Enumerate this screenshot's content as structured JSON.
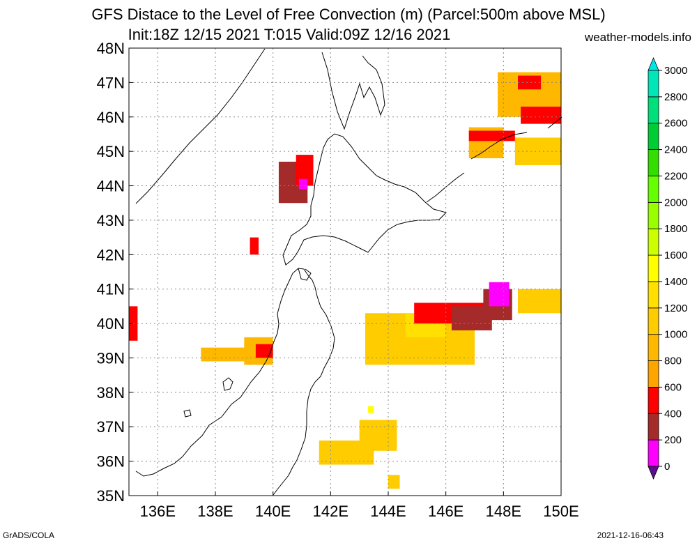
{
  "title": {
    "line1": "GFS Distace to the Level of Free Convection (m) (Parcel:500m above MSL)",
    "line2": "Init:18Z 12/15 2021 T:015 Valid:09Z 12/16 2021",
    "site": "weather-models.info"
  },
  "footer": {
    "left": "GrADS/COLA",
    "right": "2021-12-16-06:43"
  },
  "map": {
    "lon_range": [
      135,
      150
    ],
    "lat_range": [
      35,
      48
    ],
    "lon_ticks": [
      "136E",
      "138E",
      "140E",
      "142E",
      "144E",
      "146E",
      "148E",
      "150E"
    ],
    "lon_tick_values": [
      136,
      138,
      140,
      142,
      144,
      146,
      148,
      150
    ],
    "lat_ticks": [
      "35N",
      "36N",
      "37N",
      "38N",
      "39N",
      "40N",
      "41N",
      "42N",
      "43N",
      "44N",
      "45N",
      "46N",
      "47N",
      "48N"
    ],
    "lat_tick_values": [
      35,
      36,
      37,
      38,
      39,
      40,
      41,
      42,
      43,
      44,
      45,
      46,
      47,
      48
    ],
    "grid": true,
    "field_patches": [
      {
        "bounds": [
          [
            135.0,
            39.5
          ],
          [
            135.3,
            40.5
          ]
        ],
        "value": 500
      },
      {
        "bounds": [
          [
            137.5,
            38.9
          ],
          [
            139.2,
            39.3
          ]
        ],
        "value": 900
      },
      {
        "bounds": [
          [
            139.0,
            38.8
          ],
          [
            140.0,
            39.6
          ]
        ],
        "value": 900
      },
      {
        "bounds": [
          [
            139.4,
            39.0
          ],
          [
            140.0,
            39.4
          ]
        ],
        "value": 500
      },
      {
        "bounds": [
          [
            139.2,
            42.0
          ],
          [
            139.5,
            42.5
          ]
        ],
        "value": 500
      },
      {
        "bounds": [
          [
            140.2,
            43.5
          ],
          [
            141.2,
            44.7
          ]
        ],
        "value": 300
      },
      {
        "bounds": [
          [
            140.8,
            44.0
          ],
          [
            141.4,
            44.9
          ]
        ],
        "value": 500
      },
      {
        "bounds": [
          [
            140.9,
            43.9
          ],
          [
            141.2,
            44.2
          ]
        ],
        "value": 100
      },
      {
        "bounds": [
          [
            143.0,
            36.3
          ],
          [
            144.3,
            37.2
          ]
        ],
        "value": 1000
      },
      {
        "bounds": [
          [
            141.6,
            35.9
          ],
          [
            143.5,
            36.6
          ]
        ],
        "value": 1000
      },
      {
        "bounds": [
          [
            144.0,
            35.2
          ],
          [
            144.4,
            35.6
          ]
        ],
        "value": 1000
      },
      {
        "bounds": [
          [
            143.2,
            38.8
          ],
          [
            147.0,
            40.3
          ]
        ],
        "value": 1100
      },
      {
        "bounds": [
          [
            144.6,
            39.6
          ],
          [
            146.0,
            40.3
          ]
        ],
        "value": 1200
      },
      {
        "bounds": [
          [
            144.9,
            40.0
          ],
          [
            147.5,
            40.6
          ]
        ],
        "value": 500
      },
      {
        "bounds": [
          [
            146.2,
            39.8
          ],
          [
            147.6,
            40.5
          ]
        ],
        "value": 300
      },
      {
        "bounds": [
          [
            147.3,
            40.1
          ],
          [
            148.3,
            41.0
          ]
        ],
        "value": 300
      },
      {
        "bounds": [
          [
            147.5,
            40.5
          ],
          [
            148.2,
            41.2
          ]
        ],
        "value": 100
      },
      {
        "bounds": [
          [
            148.5,
            40.3
          ],
          [
            150.0,
            41.0
          ]
        ],
        "value": 1000
      },
      {
        "bounds": [
          [
            146.8,
            44.8
          ],
          [
            148.0,
            45.7
          ]
        ],
        "value": 900
      },
      {
        "bounds": [
          [
            146.8,
            45.3
          ],
          [
            148.4,
            45.6
          ]
        ],
        "value": 500
      },
      {
        "bounds": [
          [
            147.8,
            46.0
          ],
          [
            150.0,
            47.3
          ]
        ],
        "value": 900
      },
      {
        "bounds": [
          [
            148.6,
            45.8
          ],
          [
            150.0,
            46.3
          ]
        ],
        "value": 500
      },
      {
        "bounds": [
          [
            148.5,
            46.8
          ],
          [
            149.3,
            47.2
          ]
        ],
        "value": 500
      },
      {
        "bounds": [
          [
            148.4,
            44.6
          ],
          [
            150.0,
            45.4
          ]
        ],
        "value": 1000
      },
      {
        "bounds": [
          [
            143.3,
            37.4
          ],
          [
            143.5,
            37.6
          ]
        ],
        "value": 1500
      }
    ]
  },
  "colorbar": {
    "labels": [
      "0",
      "200",
      "400",
      "600",
      "800",
      "1000",
      "1200",
      "1400",
      "1600",
      "1800",
      "2000",
      "2200",
      "2400",
      "2600",
      "2800",
      "3000"
    ],
    "values": [
      0,
      200,
      400,
      600,
      800,
      1000,
      1200,
      1400,
      1600,
      1800,
      2000,
      2200,
      2400,
      2600,
      2800,
      3000
    ],
    "colors": [
      "#5b0f8e",
      "#ff00ff",
      "#a52a2a",
      "#ff0000",
      "#ffa500",
      "#ffb800",
      "#ffcc00",
      "#ffe000",
      "#ffff00",
      "#ccff00",
      "#99ff00",
      "#66ff00",
      "#33dd00",
      "#00cc33",
      "#00e07a",
      "#00e6b8",
      "#00e6e6"
    ]
  }
}
